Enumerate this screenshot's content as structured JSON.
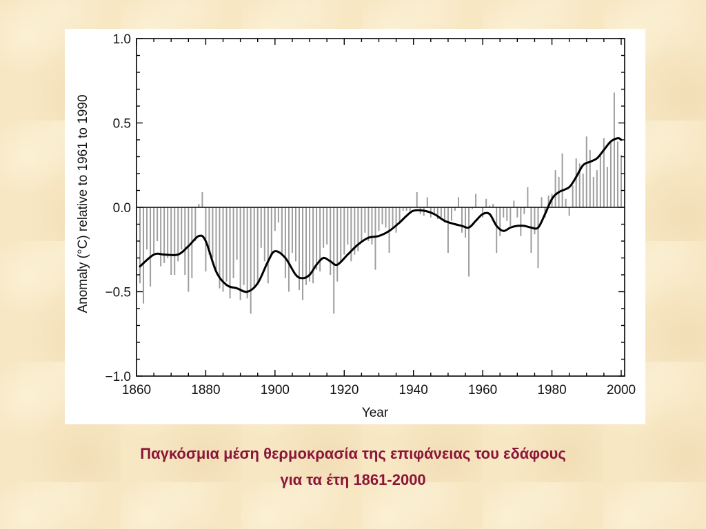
{
  "background_color": "#f7e7c3",
  "caption": {
    "line1": "Παγκόσμια μέση θερμοκρασία της επιφάνειας του εδάφους",
    "line2": "για τα έτη 1861-2000",
    "color": "#8b1538"
  },
  "chart_data": {
    "type": "bar",
    "title": "",
    "xlabel": "Year",
    "ylabel": "Anomaly (°C) relative to 1961 to 1990",
    "xlim": [
      1860,
      2001
    ],
    "ylim": [
      -1.0,
      1.0
    ],
    "x_ticks": [
      1860,
      1880,
      1900,
      1920,
      1940,
      1960,
      1980,
      2000
    ],
    "x_tick_labels": [
      "1860",
      "1880",
      "1900",
      "1920",
      "1940",
      "1960",
      "1980",
      "2000"
    ],
    "y_ticks": [
      -1.0,
      -0.5,
      0.0,
      0.5,
      1.0
    ],
    "y_tick_labels": [
      "−1.0",
      "−0.5",
      "0.0",
      "0.5",
      "1.0"
    ],
    "bar_color": "#9e9e9e",
    "line_color": "#000000",
    "grid": false,
    "series": [
      {
        "type": "bar",
        "years": [
          1861,
          1862,
          1863,
          1864,
          1865,
          1866,
          1867,
          1868,
          1869,
          1870,
          1871,
          1872,
          1873,
          1874,
          1875,
          1876,
          1877,
          1878,
          1879,
          1880,
          1881,
          1882,
          1883,
          1884,
          1885,
          1886,
          1887,
          1888,
          1889,
          1890,
          1891,
          1892,
          1893,
          1894,
          1895,
          1896,
          1897,
          1898,
          1899,
          1900,
          1901,
          1902,
          1903,
          1904,
          1905,
          1906,
          1907,
          1908,
          1909,
          1910,
          1911,
          1912,
          1913,
          1914,
          1915,
          1916,
          1917,
          1918,
          1919,
          1920,
          1921,
          1922,
          1923,
          1924,
          1925,
          1926,
          1927,
          1928,
          1929,
          1930,
          1931,
          1932,
          1933,
          1934,
          1935,
          1936,
          1937,
          1938,
          1939,
          1940,
          1941,
          1942,
          1943,
          1944,
          1945,
          1946,
          1947,
          1948,
          1949,
          1950,
          1951,
          1952,
          1953,
          1954,
          1955,
          1956,
          1957,
          1958,
          1959,
          1960,
          1961,
          1962,
          1963,
          1964,
          1965,
          1966,
          1967,
          1968,
          1969,
          1970,
          1971,
          1972,
          1973,
          1974,
          1975,
          1976,
          1977,
          1978,
          1979,
          1980,
          1981,
          1982,
          1983,
          1984,
          1985,
          1986,
          1987,
          1988,
          1989,
          1990,
          1991,
          1992,
          1993,
          1994,
          1995,
          1996,
          1997,
          1998,
          1999,
          2000
        ],
        "values": [
          -0.45,
          -0.57,
          -0.25,
          -0.47,
          -0.27,
          -0.2,
          -0.35,
          -0.33,
          -0.3,
          -0.4,
          -0.4,
          -0.32,
          -0.25,
          -0.4,
          -0.5,
          -0.42,
          -0.2,
          0.02,
          0.09,
          -0.38,
          -0.28,
          -0.3,
          -0.38,
          -0.48,
          -0.5,
          -0.44,
          -0.54,
          -0.42,
          -0.31,
          -0.55,
          -0.46,
          -0.54,
          -0.63,
          -0.48,
          -0.46,
          -0.24,
          -0.32,
          -0.45,
          -0.28,
          -0.14,
          -0.09,
          -0.28,
          -0.42,
          -0.5,
          -0.27,
          -0.32,
          -0.49,
          -0.55,
          -0.46,
          -0.44,
          -0.45,
          -0.37,
          -0.38,
          -0.24,
          -0.22,
          -0.4,
          -0.63,
          -0.44,
          -0.33,
          -0.28,
          -0.22,
          -0.32,
          -0.28,
          -0.26,
          -0.2,
          -0.15,
          -0.2,
          -0.22,
          -0.37,
          -0.14,
          -0.1,
          -0.12,
          -0.27,
          -0.12,
          -0.15,
          -0.1,
          -0.02,
          -0.02,
          -0.02,
          0.0,
          0.09,
          -0.04,
          -0.05,
          0.06,
          -0.06,
          -0.04,
          -0.07,
          -0.06,
          -0.09,
          -0.27,
          -0.08,
          -0.02,
          0.06,
          -0.15,
          -0.18,
          -0.41,
          -0.01,
          0.08,
          0.0,
          -0.06,
          0.05,
          0.01,
          0.02,
          -0.27,
          -0.17,
          -0.06,
          -0.08,
          -0.11,
          0.04,
          -0.06,
          -0.17,
          -0.04,
          0.12,
          -0.27,
          -0.16,
          -0.36,
          0.06,
          -0.06,
          0.07,
          0.08,
          0.22,
          0.18,
          0.32,
          0.05,
          -0.05,
          0.13,
          0.29,
          0.26,
          0.2,
          0.42,
          0.34,
          0.18,
          0.22,
          0.32,
          0.41,
          0.24,
          0.39,
          0.68,
          0.39,
          0.31
        ]
      },
      {
        "type": "line",
        "name": "",
        "years": [
          1861,
          1865,
          1868,
          1872,
          1875,
          1878,
          1880,
          1883,
          1886,
          1889,
          1892,
          1895,
          1898,
          1900,
          1903,
          1906,
          1908,
          1910,
          1912,
          1914,
          1916,
          1918,
          1921,
          1924,
          1927,
          1930,
          1933,
          1936,
          1938,
          1940,
          1943,
          1946,
          1949,
          1952,
          1954,
          1956,
          1958,
          1960,
          1962,
          1964,
          1966,
          1968,
          1970,
          1972,
          1974,
          1976,
          1978,
          1980,
          1982,
          1985,
          1987,
          1989,
          1991,
          1993,
          1995,
          1997,
          1999,
          2000
        ],
        "values": [
          -0.35,
          -0.28,
          -0.28,
          -0.28,
          -0.23,
          -0.17,
          -0.2,
          -0.38,
          -0.46,
          -0.48,
          -0.5,
          -0.45,
          -0.32,
          -0.26,
          -0.3,
          -0.4,
          -0.42,
          -0.4,
          -0.34,
          -0.3,
          -0.32,
          -0.34,
          -0.28,
          -0.22,
          -0.18,
          -0.17,
          -0.14,
          -0.09,
          -0.05,
          -0.02,
          -0.02,
          -0.04,
          -0.08,
          -0.1,
          -0.11,
          -0.12,
          -0.08,
          -0.04,
          -0.04,
          -0.11,
          -0.14,
          -0.12,
          -0.11,
          -0.11,
          -0.12,
          -0.12,
          -0.04,
          0.05,
          0.09,
          0.12,
          0.18,
          0.25,
          0.27,
          0.29,
          0.34,
          0.39,
          0.41,
          0.4
        ]
      }
    ]
  }
}
